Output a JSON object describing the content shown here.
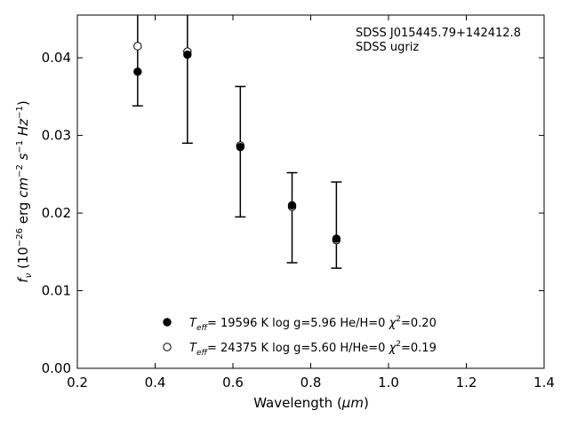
{
  "chart_data": {
    "type": "scatter",
    "xlabel_main": "Wavelength (",
    "xlabel_unit": "μm",
    "xlabel_close": ")",
    "ylabel_parts": [
      "f",
      "ν",
      " (10",
      "−26",
      " erg ",
      "cm",
      "−2",
      " ",
      "s",
      "−1",
      " ",
      "Hz",
      "−1",
      ")"
    ],
    "xlim": [
      0.2,
      1.4
    ],
    "ylim": [
      0.0,
      0.0455
    ],
    "xticks": [
      "0.2",
      "0.4",
      "0.6",
      "0.8",
      "1.0",
      "1.2",
      "1.4"
    ],
    "yticks": [
      "0.00",
      "0.01",
      "0.02",
      "0.03",
      "0.04"
    ],
    "annotations": [
      "SDSS J015445.79+142412.8",
      "SDSS ugriz"
    ],
    "grid": false,
    "legend_position": "bottom-center",
    "observed": {
      "bands": [
        "u",
        "g",
        "r",
        "i",
        "z"
      ],
      "x": [
        0.355,
        0.483,
        0.619,
        0.752,
        0.866
      ],
      "y": [
        0.0382,
        0.0404,
        0.0285,
        0.0209,
        0.0167
      ],
      "yerr_low": [
        0.0338,
        0.029,
        0.0195,
        0.0136,
        0.0129
      ],
      "yerr_high": [
        0.05,
        0.05,
        0.0363,
        0.0252,
        0.024
      ]
    },
    "series": [
      {
        "marker": "filled-circle",
        "label_T": "T",
        "label_sub": "eff",
        "label_rest": "= 19596 K  log g=5.96  He/H=0  ",
        "label_chi": "χ",
        "label_sup": "2",
        "label_end": "=0.20",
        "x": [
          0.355,
          0.483,
          0.619,
          0.752,
          0.866
        ],
        "y": [
          0.0382,
          0.0404,
          0.0285,
          0.021,
          0.0167
        ]
      },
      {
        "marker": "open-circle",
        "label_T": "T",
        "label_sub": "eff",
        "label_rest": "= 24375 K  log g=5.60  H/He=0  ",
        "label_chi": "χ",
        "label_sup": "2",
        "label_end": "=0.19",
        "x": [
          0.355,
          0.483,
          0.619,
          0.752,
          0.866
        ],
        "y": [
          0.0415,
          0.0408,
          0.0287,
          0.0208,
          0.0165
        ]
      }
    ]
  }
}
